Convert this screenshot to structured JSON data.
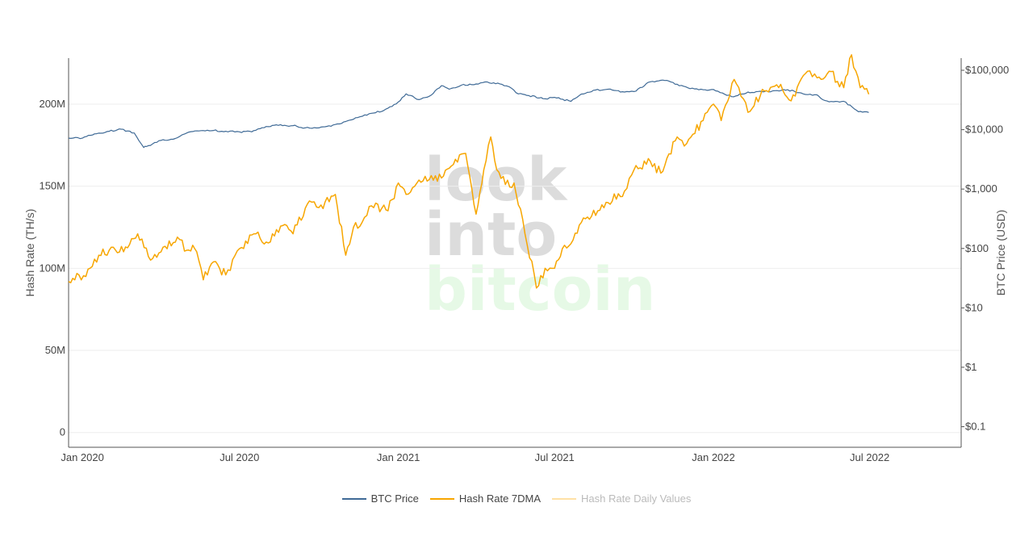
{
  "chart_data": {
    "type": "line",
    "xlabel": "",
    "ylabel_left": "Hash Rate (TH/s)",
    "ylabel_right": "BTC Price (USD)",
    "watermark": [
      "look",
      "into",
      "bitcoin"
    ],
    "x_ticks": [
      "Jan 2020",
      "Jul 2020",
      "Jan 2021",
      "Jul 2021",
      "Jan 2022",
      "Jul 2022"
    ],
    "x_tick_dates": [
      "2020-01-01",
      "2020-07-01",
      "2021-01-01",
      "2021-07-01",
      "2022-01-01",
      "2022-07-01"
    ],
    "x_range": [
      "2019-12-16",
      "2022-10-15"
    ],
    "y_left_ticks": [
      "0",
      "50M",
      "100M",
      "150M",
      "200M"
    ],
    "y_left_tick_values": [
      0,
      50000000,
      100000000,
      150000000,
      200000000
    ],
    "y_left_range": [
      -9000000,
      228000000
    ],
    "y_right_scale": "log",
    "y_right_ticks": [
      "$0.1",
      "$1",
      "$10",
      "$100",
      "$1,000",
      "$10,000",
      "$100,000"
    ],
    "y_right_tick_values": [
      0.1,
      1,
      10,
      100,
      1000,
      10000,
      100000
    ],
    "y_right_range": [
      0.045,
      160000
    ],
    "grid": true,
    "legend_position": "bottom-center",
    "series": [
      {
        "name": "BTC Price",
        "axis": "right",
        "color": "#3f6a96",
        "x": [
          "2019-12-16",
          "2020-01-01",
          "2020-01-15",
          "2020-02-01",
          "2020-02-15",
          "2020-03-01",
          "2020-03-12",
          "2020-03-15",
          "2020-04-01",
          "2020-04-15",
          "2020-05-01",
          "2020-05-15",
          "2020-06-01",
          "2020-06-15",
          "2020-07-01",
          "2020-07-15",
          "2020-08-01",
          "2020-08-15",
          "2020-09-01",
          "2020-09-15",
          "2020-10-01",
          "2020-10-15",
          "2020-11-01",
          "2020-11-15",
          "2020-12-01",
          "2020-12-15",
          "2021-01-01",
          "2021-01-10",
          "2021-01-25",
          "2021-02-08",
          "2021-02-20",
          "2021-03-01",
          "2021-03-15",
          "2021-04-01",
          "2021-04-14",
          "2021-05-01",
          "2021-05-12",
          "2021-05-20",
          "2021-06-01",
          "2021-06-20",
          "2021-07-01",
          "2021-07-20",
          "2021-08-01",
          "2021-08-15",
          "2021-09-01",
          "2021-09-20",
          "2021-10-01",
          "2021-10-20",
          "2021-11-08",
          "2021-11-20",
          "2021-12-05",
          "2021-12-20",
          "2022-01-01",
          "2022-01-22",
          "2022-02-10",
          "2022-03-01",
          "2022-03-28",
          "2022-04-15",
          "2022-05-01",
          "2022-05-10",
          "2022-05-20",
          "2022-06-01",
          "2022-06-13",
          "2022-06-18",
          "2022-06-30"
        ],
        "y": [
          7200,
          7200,
          8500,
          9400,
          10200,
          8800,
          5000,
          5200,
          6600,
          6900,
          8800,
          9500,
          9700,
          9400,
          9200,
          9200,
          11300,
          11800,
          11700,
          10700,
          10700,
          11400,
          13700,
          16000,
          18900,
          21000,
          29300,
          40000,
          32000,
          38000,
          55000,
          48000,
          56000,
          58800,
          63500,
          57800,
          50000,
          40000,
          37500,
          33000,
          35000,
          30000,
          39800,
          46000,
          48000,
          43000,
          43800,
          64000,
          67500,
          58000,
          49000,
          47000,
          47500,
          36000,
          43000,
          43500,
          47000,
          40000,
          38500,
          31000,
          29500,
          30000,
          22500,
          20000,
          19500
        ]
      },
      {
        "name": "Hash Rate 7DMA",
        "axis": "left",
        "color": "#f7a600",
        "x": [
          "2019-12-16",
          "2019-12-28",
          "2020-01-05",
          "2020-01-20",
          "2020-02-01",
          "2020-02-20",
          "2020-03-05",
          "2020-03-20",
          "2020-04-01",
          "2020-04-20",
          "2020-05-01",
          "2020-05-10",
          "2020-05-20",
          "2020-06-01",
          "2020-06-15",
          "2020-07-01",
          "2020-07-20",
          "2020-08-01",
          "2020-08-20",
          "2020-09-01",
          "2020-09-20",
          "2020-10-01",
          "2020-10-20",
          "2020-11-01",
          "2020-11-10",
          "2020-11-20",
          "2020-12-01",
          "2020-12-20",
          "2021-01-01",
          "2021-01-10",
          "2021-01-20",
          "2021-02-01",
          "2021-02-20",
          "2021-03-01",
          "2021-03-20",
          "2021-04-01",
          "2021-04-10",
          "2021-04-18",
          "2021-04-25",
          "2021-05-05",
          "2021-05-15",
          "2021-05-25",
          "2021-06-10",
          "2021-06-20",
          "2021-07-01",
          "2021-07-10",
          "2021-07-20",
          "2021-08-01",
          "2021-08-20",
          "2021-09-01",
          "2021-09-20",
          "2021-10-01",
          "2021-10-20",
          "2021-11-01",
          "2021-11-20",
          "2021-12-01",
          "2021-12-20",
          "2022-01-01",
          "2022-01-10",
          "2022-01-25",
          "2022-02-10",
          "2022-03-01",
          "2022-03-20",
          "2022-04-01",
          "2022-04-20",
          "2022-05-01",
          "2022-05-15",
          "2022-06-01",
          "2022-06-10",
          "2022-06-20",
          "2022-06-30"
        ],
        "y": [
          92000000,
          96000000,
          95000000,
          108000000,
          111000000,
          113000000,
          121000000,
          105000000,
          110000000,
          119000000,
          111000000,
          112000000,
          93000000,
          104000000,
          96000000,
          112000000,
          121000000,
          116000000,
          126000000,
          121000000,
          141000000,
          137000000,
          145000000,
          108000000,
          125000000,
          128000000,
          138000000,
          135000000,
          152000000,
          145000000,
          150000000,
          156000000,
          155000000,
          161000000,
          170000000,
          133000000,
          160000000,
          180000000,
          160000000,
          151000000,
          152000000,
          130000000,
          88000000,
          100000000,
          100000000,
          112000000,
          115000000,
          128000000,
          135000000,
          140000000,
          147000000,
          160000000,
          165000000,
          158000000,
          180000000,
          176000000,
          190000000,
          200000000,
          190000000,
          215000000,
          195000000,
          208000000,
          212000000,
          202000000,
          220000000,
          216000000,
          220000000,
          210000000,
          230000000,
          210000000,
          206000000
        ]
      },
      {
        "name": "Hash Rate Daily Values",
        "axis": "left",
        "color": "#ffe1a6",
        "visible": false,
        "x": [],
        "y": []
      }
    ]
  }
}
